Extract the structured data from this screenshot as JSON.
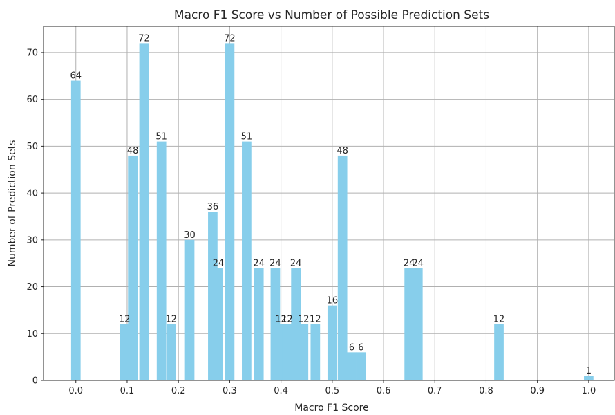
{
  "chart_data": {
    "type": "bar",
    "title": "Macro F1 Score vs Number of Possible Prediction Sets",
    "xlabel": "Macro F1 Score",
    "ylabel": "Number of Prediction Sets",
    "xlim": [
      -0.063,
      1.05
    ],
    "ylim": [
      0,
      75.6
    ],
    "xticks": [
      0.0,
      0.1,
      0.2,
      0.3,
      0.4,
      0.5,
      0.6,
      0.7,
      0.8,
      0.9,
      1.0
    ],
    "xtick_labels": [
      "0.0",
      "0.1",
      "0.2",
      "0.3",
      "0.4",
      "0.5",
      "0.6",
      "0.7",
      "0.8",
      "0.9",
      "1.0"
    ],
    "yticks": [
      0,
      10,
      20,
      30,
      40,
      50,
      60,
      70
    ],
    "ytick_labels": [
      "0",
      "10",
      "20",
      "30",
      "40",
      "50",
      "60",
      "70"
    ],
    "grid": true,
    "bar_color": "#87ceeb",
    "series": [
      {
        "x": [
          0.0,
          0.095,
          0.111,
          0.133,
          0.167,
          0.186,
          0.222,
          0.267,
          0.278,
          0.3,
          0.333,
          0.357,
          0.389,
          0.4,
          0.412,
          0.429,
          0.444,
          0.467,
          0.5,
          0.52,
          0.538,
          0.556,
          0.65,
          0.667,
          0.825,
          1.0
        ],
        "values": [
          64,
          12,
          48,
          72,
          51,
          12,
          30,
          36,
          24,
          72,
          51,
          24,
          24,
          12,
          12,
          24,
          12,
          12,
          16,
          48,
          6,
          6,
          24,
          24,
          12,
          1
        ],
        "labels": [
          "64",
          "12",
          "48",
          "72",
          "51",
          "12",
          "30",
          "36",
          "24",
          "72",
          "51",
          "24",
          "24",
          "12",
          "12",
          "24",
          "12",
          "12",
          "16",
          "48",
          "6",
          "6",
          "24",
          "24",
          "12",
          "1"
        ]
      }
    ]
  }
}
